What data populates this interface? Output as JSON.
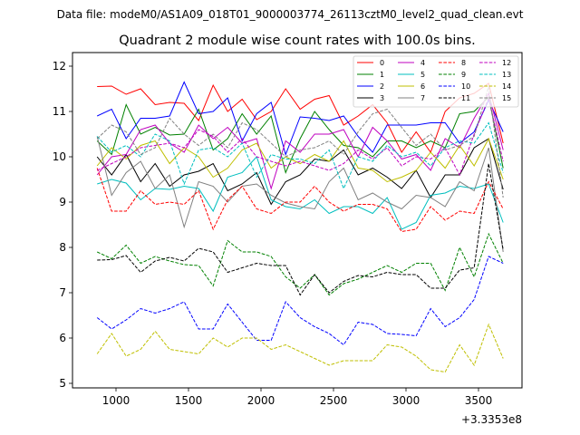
{
  "figure": {
    "suptitle": "Data file: modeM0/AS1A09_018T01_9000003774_26113cztM0_level2_quad_clean.evt"
  },
  "chart_data": {
    "type": "line",
    "title": "Quadrant 2 module wise count rates with 100.0s bins.",
    "xlabel": "",
    "ylabel": "",
    "x_offset_label": "+3.3353e8",
    "xlim": [
      700,
      3800
    ],
    "ylim": [
      4.9,
      12.3
    ],
    "xticks": [
      1000,
      1500,
      2000,
      2500,
      3000,
      3500
    ],
    "yticks": [
      5,
      6,
      7,
      8,
      9,
      10,
      11,
      12
    ],
    "grid": false,
    "legend_position": "top-right",
    "legend_columns": 4,
    "x": [
      870,
      970,
      1070,
      1170,
      1270,
      1370,
      1470,
      1570,
      1670,
      1770,
      1870,
      1970,
      2070,
      2170,
      2270,
      2370,
      2470,
      2570,
      2670,
      2770,
      2870,
      2970,
      3070,
      3170,
      3270,
      3370,
      3470,
      3570,
      3670
    ],
    "series": [
      {
        "name": "0",
        "color": "#ff0000",
        "dash": "solid",
        "values": [
          11.55,
          11.56,
          11.38,
          11.5,
          11.15,
          11.2,
          11.18,
          10.8,
          11.58,
          11.0,
          11.27,
          10.82,
          11.0,
          11.5,
          11.05,
          11.27,
          11.35,
          10.7,
          10.9,
          11.15,
          10.75,
          10.1,
          10.55,
          10.1,
          11.0,
          11.3,
          11.4,
          11.62,
          10.3
        ]
      },
      {
        "name": "1",
        "color": "#008000",
        "dash": "solid",
        "values": [
          10.35,
          10.05,
          11.15,
          10.5,
          10.65,
          10.48,
          10.5,
          11.05,
          10.15,
          10.4,
          10.95,
          10.5,
          10.9,
          9.65,
          10.4,
          11.0,
          10.6,
          10.25,
          10.2,
          10.0,
          10.35,
          10.35,
          10.2,
          10.35,
          10.2,
          10.95,
          11.0,
          11.32,
          9.75
        ]
      },
      {
        "name": "2",
        "color": "#0000ff",
        "dash": "solid",
        "values": [
          10.9,
          11.05,
          10.4,
          10.85,
          10.85,
          10.9,
          11.65,
          10.95,
          11.0,
          11.3,
          10.35,
          10.95,
          11.2,
          10.05,
          10.88,
          10.85,
          10.8,
          10.9,
          10.45,
          10.1,
          10.7,
          10.7,
          10.7,
          10.75,
          10.75,
          10.3,
          10.55,
          11.25,
          10.55
        ]
      },
      {
        "name": "3",
        "color": "#000000",
        "dash": "solid",
        "values": [
          10.0,
          9.6,
          10.05,
          9.45,
          9.85,
          9.35,
          9.6,
          9.68,
          9.85,
          9.25,
          9.4,
          9.65,
          8.95,
          9.45,
          9.6,
          9.95,
          9.9,
          10.15,
          9.6,
          9.75,
          9.55,
          9.3,
          9.7,
          9.1,
          9.6,
          9.6,
          10.2,
          10.4,
          9.28
        ]
      },
      {
        "name": "4",
        "color": "#bf00bf",
        "dash": "solid",
        "values": [
          9.6,
          10.0,
          10.05,
          10.6,
          10.7,
          10.3,
          10.1,
          10.7,
          10.4,
          10.65,
          10.3,
          10.4,
          9.3,
          10.35,
          10.1,
          10.5,
          10.5,
          10.6,
          10.0,
          10.65,
          10.35,
          9.95,
          10.05,
          9.7,
          10.4,
          10.2,
          10.85,
          11.4,
          10.15
        ]
      },
      {
        "name": "5",
        "color": "#00bfbf",
        "dash": "solid",
        "values": [
          9.4,
          9.5,
          9.42,
          9.05,
          9.3,
          9.28,
          9.35,
          9.3,
          8.8,
          9.55,
          9.65,
          10.0,
          9.05,
          8.9,
          8.85,
          9.05,
          8.75,
          8.9,
          8.9,
          8.75,
          9.1,
          8.4,
          8.55,
          9.15,
          9.2,
          9.35,
          9.3,
          9.4,
          8.55
        ]
      },
      {
        "name": "6",
        "color": "#bfbf00",
        "dash": "solid",
        "values": [
          9.8,
          10.2,
          9.95,
          10.25,
          10.35,
          9.85,
          10.2,
          10.0,
          9.55,
          9.75,
          10.15,
          10.3,
          9.75,
          10.0,
          9.85,
          10.05,
          9.9,
          10.35,
          9.75,
          9.7,
          9.45,
          9.55,
          9.7,
          10.1,
          9.75,
          10.25,
          9.8,
          10.4,
          9.5
        ]
      },
      {
        "name": "7",
        "color": "#808080",
        "dash": "solid",
        "values": [
          10.45,
          9.15,
          9.65,
          9.9,
          9.3,
          9.6,
          8.45,
          9.45,
          9.35,
          9.0,
          9.35,
          9.4,
          9.15,
          8.98,
          8.9,
          8.85,
          9.45,
          9.75,
          9.05,
          9.2,
          9.0,
          8.85,
          9.15,
          9.1,
          8.9,
          9.45,
          9.25,
          10.2,
          7.9
        ]
      },
      {
        "name": "8",
        "color": "#ff0000",
        "dash": "dashed",
        "values": [
          9.75,
          8.8,
          8.8,
          9.25,
          8.95,
          9.0,
          8.95,
          9.25,
          8.4,
          9.05,
          9.35,
          8.85,
          8.75,
          9.0,
          9.0,
          9.35,
          9.0,
          8.8,
          8.95,
          8.95,
          8.85,
          8.35,
          8.4,
          8.9,
          8.6,
          8.8,
          8.75,
          9.45,
          8.85
        ]
      },
      {
        "name": "9",
        "color": "#008000",
        "dash": "dashed",
        "values": [
          7.9,
          7.75,
          8.05,
          7.65,
          7.8,
          7.7,
          7.62,
          7.6,
          7.15,
          8.15,
          7.9,
          7.9,
          7.8,
          7.35,
          7.1,
          7.4,
          6.95,
          7.2,
          7.3,
          7.45,
          7.6,
          7.45,
          7.65,
          7.65,
          7.05,
          8.0,
          7.35,
          8.3,
          7.65
        ]
      },
      {
        "name": "10",
        "color": "#0000ff",
        "dash": "dashed",
        "values": [
          6.45,
          6.2,
          6.4,
          6.65,
          6.55,
          6.65,
          6.8,
          6.2,
          6.2,
          6.75,
          6.35,
          5.95,
          5.95,
          6.8,
          6.45,
          6.25,
          6.1,
          5.85,
          6.35,
          6.3,
          6.1,
          6.08,
          6.05,
          6.65,
          6.25,
          6.45,
          6.85,
          7.8,
          7.65
        ]
      },
      {
        "name": "11",
        "color": "#000000",
        "dash": "dashed",
        "values": [
          7.72,
          7.73,
          7.82,
          7.45,
          7.7,
          7.78,
          7.7,
          7.98,
          7.9,
          7.45,
          7.55,
          7.65,
          7.6,
          7.6,
          6.95,
          7.4,
          7.0,
          7.25,
          7.38,
          7.35,
          7.45,
          7.4,
          7.4,
          7.1,
          7.1,
          7.5,
          7.55,
          9.85,
          7.95
        ]
      },
      {
        "name": "12",
        "color": "#bf00bf",
        "dash": "dashed",
        "values": [
          9.7,
          9.85,
          10.0,
          10.2,
          10.25,
          10.3,
          10.2,
          10.6,
          10.45,
          10.1,
          10.4,
          10.0,
          9.9,
          9.8,
          9.9,
          9.8,
          9.7,
          9.85,
          10.15,
          9.95,
          10.2,
          9.8,
          10.0,
          9.95,
          10.2,
          9.6,
          10.5,
          11.3,
          9.9
        ]
      },
      {
        "name": "13",
        "color": "#00bfbf",
        "dash": "dashed",
        "values": [
          10.45,
          10.1,
          10.25,
          10.0,
          10.5,
          10.35,
          9.4,
          10.15,
          10.2,
          10.0,
          10.3,
          9.55,
          10.05,
          9.95,
          9.95,
          9.85,
          10.15,
          9.3,
          10.0,
          9.9,
          10.25,
          10.0,
          10.1,
          9.8,
          10.2,
          10.35,
          10.3,
          10.75,
          9.65
        ]
      },
      {
        "name": "14",
        "color": "#bfbf00",
        "dash": "dashed",
        "values": [
          5.65,
          6.1,
          5.6,
          5.75,
          6.15,
          5.75,
          5.7,
          5.65,
          6.0,
          5.8,
          6.0,
          6.0,
          5.75,
          5.85,
          5.7,
          5.55,
          5.4,
          5.5,
          5.5,
          5.5,
          5.85,
          5.8,
          5.6,
          5.3,
          5.25,
          5.85,
          5.4,
          6.3,
          5.55
        ]
      },
      {
        "name": "15",
        "color": "#808080",
        "dash": "dashed",
        "values": [
          10.4,
          10.7,
          10.55,
          10.05,
          10.2,
          10.85,
          10.5,
          10.25,
          10.5,
          10.2,
          10.75,
          10.6,
          10.3,
          10.0,
          10.15,
          10.2,
          10.35,
          10.05,
          10.55,
          10.95,
          11.05,
          10.65,
          10.25,
          10.5,
          10.15,
          10.25,
          10.45,
          11.55,
          9.1
        ]
      }
    ]
  }
}
